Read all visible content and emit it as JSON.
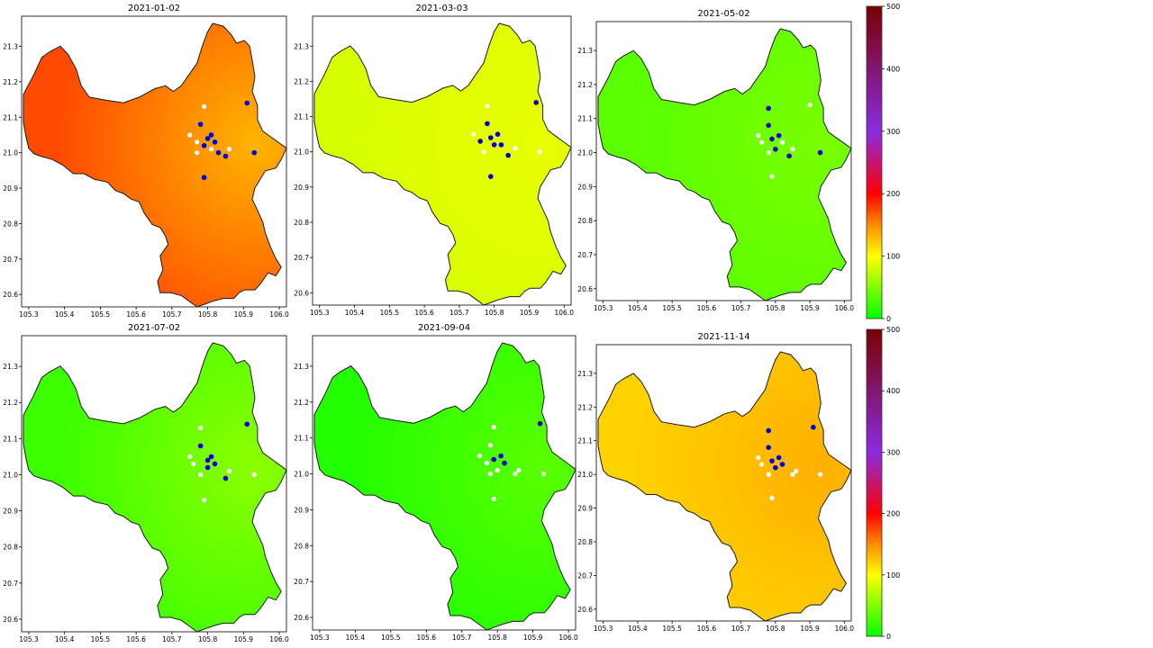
{
  "colorbar": {
    "tick_labels": [
      "0",
      "100",
      "200",
      "300",
      "400",
      "500"
    ],
    "scale": [
      {
        "value": 0,
        "color": "#00ff00"
      },
      {
        "value": 100,
        "color": "#ffff00"
      },
      {
        "value": 150,
        "color": "#ff8c00"
      },
      {
        "value": 200,
        "color": "#ff0000"
      },
      {
        "value": 300,
        "color": "#8a2be2"
      },
      {
        "value": 500,
        "color": "#7b0000"
      }
    ]
  },
  "x_ticks": [
    "105.3",
    "105.4",
    "105.5",
    "105.6",
    "105.7",
    "105.8",
    "105.9",
    "106.0"
  ],
  "y_ticks": [
    "20.6",
    "20.7",
    "20.8",
    "20.9",
    "21.0",
    "21.1",
    "21.2",
    "21.3"
  ],
  "colors": {
    "station_blue": "#0000cc",
    "station_white": "#ffffff",
    "outline": "#1a1a1a"
  },
  "maps": [
    {
      "title": "2021-01-02",
      "base_color": "#ff4a00",
      "hot_color": "#ffb400",
      "blue_stations": [
        [
          105.78,
          21.08
        ],
        [
          105.8,
          21.04
        ],
        [
          105.81,
          21.05
        ],
        [
          105.82,
          21.03
        ],
        [
          105.79,
          21.02
        ],
        [
          105.83,
          21.0
        ],
        [
          105.85,
          20.99
        ],
        [
          105.91,
          21.14
        ],
        [
          105.93,
          21.0
        ],
        [
          105.79,
          20.93
        ]
      ],
      "white_stations": [
        [
          105.75,
          21.05
        ],
        [
          105.77,
          21.03
        ],
        [
          105.79,
          21.13
        ],
        [
          105.77,
          21.0
        ],
        [
          105.86,
          21.01
        ],
        [
          105.81,
          21.01
        ]
      ]
    },
    {
      "title": "2021-03-03",
      "base_color": "#d8ff00",
      "hot_color": "#e8ff00",
      "blue_stations": [
        [
          105.78,
          21.08
        ],
        [
          105.76,
          21.03
        ],
        [
          105.79,
          21.04
        ],
        [
          105.81,
          21.05
        ],
        [
          105.82,
          21.02
        ],
        [
          105.8,
          21.02
        ],
        [
          105.84,
          20.99
        ],
        [
          105.92,
          21.14
        ],
        [
          105.79,
          20.93
        ]
      ],
      "white_stations": [
        [
          105.74,
          21.05
        ],
        [
          105.78,
          21.13
        ],
        [
          105.77,
          21.0
        ],
        [
          105.86,
          21.01
        ],
        [
          105.93,
          21.0
        ]
      ]
    },
    {
      "title": "2021-05-02",
      "base_color": "#5aff00",
      "hot_color": "#7aff00",
      "blue_stations": [
        [
          105.78,
          21.13
        ],
        [
          105.78,
          21.08
        ],
        [
          105.79,
          21.04
        ],
        [
          105.81,
          21.05
        ],
        [
          105.8,
          21.01
        ],
        [
          105.84,
          20.99
        ],
        [
          105.93,
          21.0
        ]
      ],
      "white_stations": [
        [
          105.75,
          21.05
        ],
        [
          105.76,
          21.03
        ],
        [
          105.78,
          21.0
        ],
        [
          105.82,
          21.03
        ],
        [
          105.85,
          21.01
        ],
        [
          105.79,
          20.93
        ],
        [
          105.9,
          21.14
        ]
      ]
    },
    {
      "title": "2021-07-02",
      "base_color": "#3cff00",
      "hot_color": "#8cff00",
      "blue_stations": [
        [
          105.78,
          21.08
        ],
        [
          105.8,
          21.04
        ],
        [
          105.81,
          21.05
        ],
        [
          105.82,
          21.03
        ],
        [
          105.8,
          21.02
        ],
        [
          105.85,
          20.99
        ],
        [
          105.91,
          21.14
        ]
      ],
      "white_stations": [
        [
          105.75,
          21.05
        ],
        [
          105.76,
          21.03
        ],
        [
          105.78,
          21.13
        ],
        [
          105.78,
          21.0
        ],
        [
          105.86,
          21.01
        ],
        [
          105.93,
          21.0
        ],
        [
          105.79,
          20.93
        ]
      ]
    },
    {
      "title": "2021-09-04",
      "base_color": "#22ff00",
      "hot_color": "#5aff00",
      "blue_stations": [
        [
          105.79,
          21.04
        ],
        [
          105.81,
          21.05
        ],
        [
          105.82,
          21.03
        ],
        [
          105.92,
          21.14
        ]
      ],
      "white_stations": [
        [
          105.75,
          21.05
        ],
        [
          105.77,
          21.03
        ],
        [
          105.78,
          21.08
        ],
        [
          105.79,
          21.13
        ],
        [
          105.78,
          21.0
        ],
        [
          105.8,
          21.01
        ],
        [
          105.85,
          21.0
        ],
        [
          105.86,
          21.01
        ],
        [
          105.93,
          21.0
        ],
        [
          105.79,
          20.93
        ]
      ]
    },
    {
      "title": "2021-11-14",
      "base_color": "#ffd200",
      "hot_color": "#ffb000",
      "blue_stations": [
        [
          105.78,
          21.13
        ],
        [
          105.78,
          21.08
        ],
        [
          105.79,
          21.04
        ],
        [
          105.81,
          21.05
        ],
        [
          105.82,
          21.03
        ],
        [
          105.8,
          21.02
        ],
        [
          105.91,
          21.14
        ]
      ],
      "white_stations": [
        [
          105.75,
          21.05
        ],
        [
          105.76,
          21.03
        ],
        [
          105.78,
          21.0
        ],
        [
          105.86,
          21.01
        ],
        [
          105.85,
          21.0
        ],
        [
          105.93,
          21.0
        ],
        [
          105.79,
          20.93
        ]
      ]
    }
  ]
}
